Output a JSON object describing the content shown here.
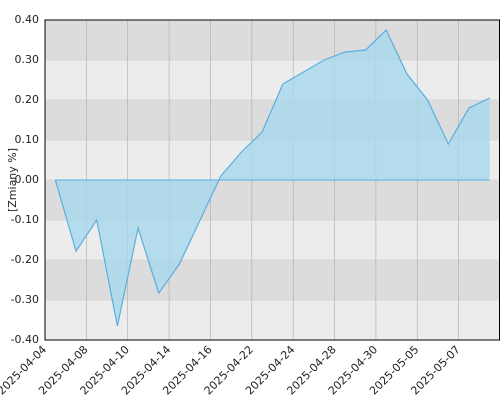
{
  "chart_data": {
    "type": "area",
    "y_label": "[Zmiany %]",
    "categories": [
      "2025-04-04",
      null,
      "2025-04-08",
      null,
      "2025-04-10",
      null,
      "2025-04-14",
      null,
      "2025-04-16",
      null,
      "2025-04-22",
      null,
      "2025-04-24",
      null,
      "2025-04-28",
      null,
      "2025-04-30",
      null,
      "2025-05-05",
      null,
      "2025-05-07",
      null
    ],
    "values": [
      0.0,
      -0.178,
      -0.1,
      -0.365,
      -0.12,
      -0.283,
      -0.21,
      -0.1,
      0.01,
      0.07,
      0.12,
      0.24,
      0.27,
      0.3,
      0.32,
      0.325,
      0.375,
      0.265,
      0.2,
      0.09,
      0.18,
      0.205
    ],
    "color": "#5aaee0",
    "fill": "#a8d8ec",
    "ylim": [
      -0.4,
      0.4
    ],
    "yticks": [
      {
        "value": -0.4,
        "label": "-0.40"
      },
      {
        "value": -0.3,
        "label": "-0.30"
      },
      {
        "value": -0.2,
        "label": "-0.20"
      },
      {
        "value": -0.1,
        "label": "-0.10"
      },
      {
        "value": 0,
        "label": "0.00"
      },
      {
        "value": 0.1,
        "label": "0.10"
      },
      {
        "value": 0.2,
        "label": "0.20"
      },
      {
        "value": 0.3,
        "label": "0.30"
      },
      {
        "value": 0.4,
        "label": "0.40"
      }
    ],
    "grid": true
  }
}
